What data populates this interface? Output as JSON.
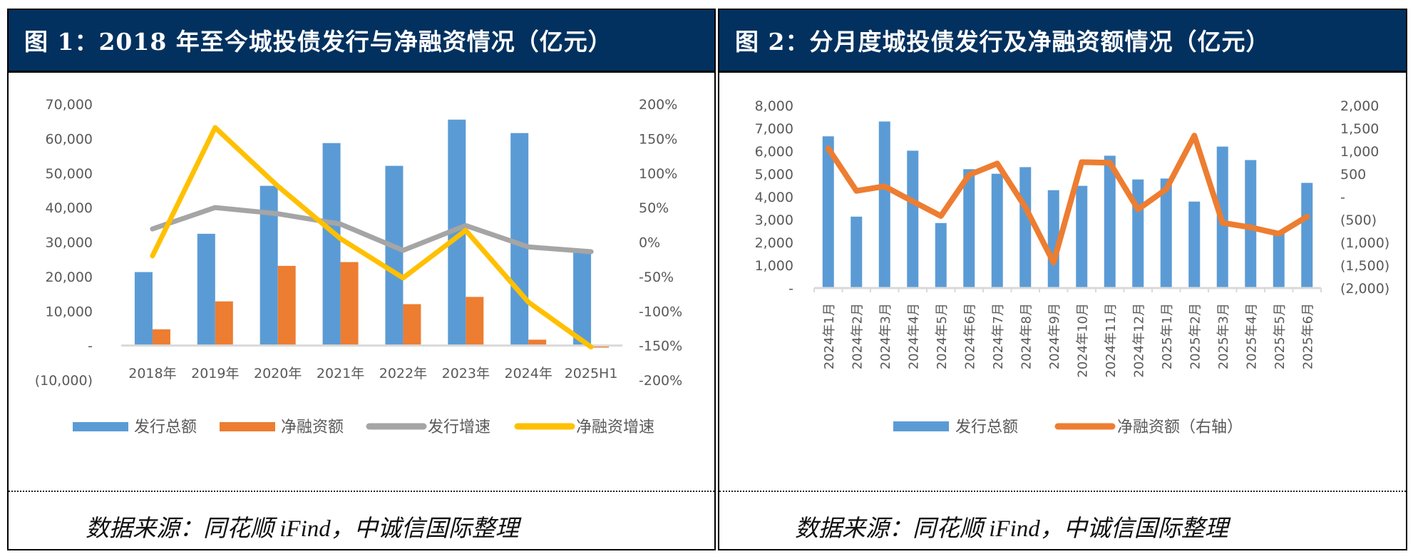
{
  "panels": [
    {
      "title": "图 1：2018 年至今城投债发行与净融资情况（亿元）",
      "source": "数据来源：同花顺 iFind，中诚信国际整理"
    },
    {
      "title": "图 2：分月度城投债发行及净融资额情况（亿元）",
      "source": "数据来源：同花顺 iFind，中诚信国际整理"
    }
  ],
  "colors": {
    "header": "#02315f",
    "blue": "#5b9bd5",
    "orange": "#ed7d31",
    "gray": "#a5a5a5",
    "yellow": "#ffc000",
    "axis": "#d9d9d9"
  },
  "chart_data": [
    {
      "type": "bar",
      "title": "图 1：2018 年至今城投债发行与净融资情况（亿元）",
      "categories": [
        "2018年",
        "2019年",
        "2020年",
        "2021年",
        "2022年",
        "2023年",
        "2024年",
        "2025H1"
      ],
      "series": [
        {
          "name": "发行总额",
          "type": "bar",
          "axis": "left",
          "color": "#5b9bd5",
          "values": [
            21300,
            32400,
            46300,
            58700,
            52100,
            65500,
            61600,
            27300
          ]
        },
        {
          "name": "净融资额",
          "type": "bar",
          "axis": "left",
          "color": "#ed7d31",
          "values": [
            4700,
            12800,
            23100,
            24200,
            12000,
            14100,
            1700,
            -600
          ]
        },
        {
          "name": "发行增速",
          "type": "line",
          "axis": "right",
          "color": "#a5a5a5",
          "values": [
            0.19,
            0.5,
            0.41,
            0.26,
            -0.12,
            0.24,
            -0.07,
            -0.14
          ]
        },
        {
          "name": "净融资增速",
          "type": "line",
          "axis": "right",
          "color": "#ffc000",
          "values": [
            -0.2,
            1.66,
            0.81,
            0.05,
            -0.52,
            0.17,
            -0.87,
            -1.52
          ]
        }
      ],
      "ylim": [
        -10000,
        70000
      ],
      "yticks": [
        "70,000",
        "60,000",
        "50,000",
        "40,000",
        "30,000",
        "20,000",
        "10,000",
        "-",
        "(10,000)"
      ],
      "y2lim": [
        -2.0,
        2.0
      ],
      "y2ticks": [
        "200%",
        "150%",
        "100%",
        "50%",
        "0%",
        "-50%",
        "-100%",
        "-150%",
        "-200%"
      ],
      "legend": [
        "发行总额",
        "净融资额",
        "发行增速",
        "净融资增速"
      ],
      "legend_position": "bottom",
      "grid": false
    },
    {
      "type": "bar",
      "title": "图 2：分月度城投债发行及净融资额情况（亿元）",
      "categories": [
        "2024年1月",
        "2024年2月",
        "2024年3月",
        "2024年4月",
        "2024年5月",
        "2024年6月",
        "2024年7月",
        "2024年8月",
        "2024年9月",
        "2024年10月",
        "2024年11月",
        "2024年12月",
        "2025年1月",
        "2025年2月",
        "2025年3月",
        "2025年4月",
        "2025年5月",
        "2025年6月"
      ],
      "series": [
        {
          "name": "发行总额",
          "type": "bar",
          "axis": "left",
          "color": "#5b9bd5",
          "values": [
            6650,
            3130,
            7300,
            6020,
            2850,
            5210,
            5010,
            5300,
            4290,
            4480,
            5800,
            4760,
            4800,
            3790,
            6200,
            5610,
            2450,
            4610
          ]
        },
        {
          "name": "净融资额（右轴）",
          "type": "line",
          "axis": "right",
          "color": "#ed7d31",
          "values": [
            1060,
            130,
            230,
            -100,
            -420,
            480,
            730,
            -230,
            -1440,
            760,
            745,
            -275,
            165,
            1340,
            -570,
            -670,
            -810,
            -435
          ]
        }
      ],
      "ylim": [
        0,
        8000
      ],
      "yticks": [
        "8,000",
        "7,000",
        "6,000",
        "5,000",
        "4,000",
        "3,000",
        "2,000",
        "1,000",
        "-"
      ],
      "y2lim": [
        -2000,
        2000
      ],
      "y2ticks": [
        "2,000",
        "1,500",
        "1,000",
        "500",
        "-",
        "(500)",
        "(1,000)",
        "(1,500)",
        "(2,000)"
      ],
      "legend": [
        "发行总额",
        "净融资额（右轴）"
      ],
      "legend_position": "bottom",
      "grid": false
    }
  ]
}
